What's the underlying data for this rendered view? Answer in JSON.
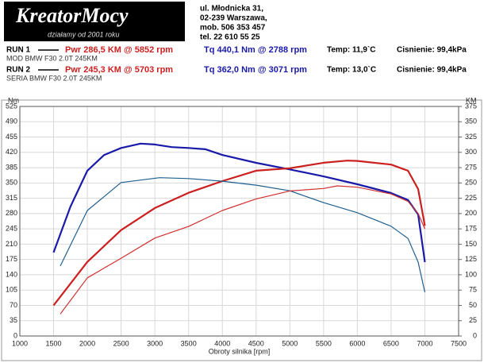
{
  "header": {
    "logo": "KreatorMocy",
    "tagline": "działamy od 2001 roku",
    "address": [
      "ul. Młodnicka 31,",
      "02-239  Warszawa,",
      "mob.  506 353 457",
      "tel.  22 610 55 25"
    ]
  },
  "runs": [
    {
      "label": "RUN 1",
      "power": "Pwr  286,5 KM @ 5852 rpm",
      "torque": "Tq 440,1 Nm @ 2788 rpm",
      "temp": "Temp: 11,9`C",
      "pressure": "Cisnienie: 99,4kPa",
      "car": "MOD BMW F30 2.0T 245KM"
    },
    {
      "label": "RUN 2",
      "power": "Pwr  245,3 KM @ 5703 rpm",
      "torque": "Tq 362,0 Nm @ 3071 rpm",
      "temp": "Temp: 13,0`C",
      "pressure": "Cisnienie: 99,4kPa",
      "car": "SERIA BMW F30 2.0T 245KM"
    }
  ],
  "chart_data": {
    "type": "line",
    "y_label": "Nm",
    "y2_label": "KM",
    "x_label": "Obroty silnika [rpm]",
    "xlim": [
      1000,
      7500
    ],
    "xticks": [
      1000,
      1500,
      2000,
      2500,
      3000,
      3500,
      4000,
      4500,
      5000,
      5500,
      6000,
      6500,
      7000,
      7500
    ],
    "ylim": [
      0,
      525
    ],
    "yticks": [
      0,
      35,
      70,
      105,
      140,
      175,
      210,
      245,
      280,
      315,
      350,
      385,
      420,
      455,
      490,
      525
    ],
    "y2lim": [
      0,
      375
    ],
    "y2ticks": [
      0,
      25,
      50,
      75,
      100,
      125,
      150,
      175,
      200,
      225,
      250,
      275,
      300,
      325,
      350,
      375
    ],
    "grid": true,
    "series": [
      {
        "color": "#1a1aa8",
        "width": 2.2,
        "x": [
          1500,
          1750,
          2000,
          2250,
          2500,
          2788,
          3000,
          3250,
          3500,
          3750,
          4000,
          4500,
          5000,
          5500,
          6000,
          6500,
          6750,
          6900,
          7000
        ],
        "values": [
          191,
          296,
          378,
          414,
          430,
          440,
          438,
          432,
          430,
          427,
          414,
          396,
          381,
          365,
          347,
          327,
          311,
          278,
          169
        ]
      },
      {
        "color": "#cc1f1f",
        "width": 2.2,
        "axis": "y2",
        "x": [
          1500,
          2000,
          2500,
          3000,
          3500,
          4000,
          4500,
          5000,
          5500,
          5852,
          6000,
          6500,
          6750,
          6900,
          7000
        ],
        "values": [
          50,
          121,
          173,
          209,
          234,
          253,
          270,
          274,
          283,
          286.5,
          286,
          280,
          270,
          240,
          180
        ]
      },
      {
        "color": "#1f5f8f",
        "width": 1.2,
        "x": [
          1600,
          2000,
          2500,
          3071,
          3500,
          4000,
          4500,
          5000,
          5500,
          6000,
          6500,
          6750,
          6900,
          7000
        ],
        "values": [
          160,
          287,
          351,
          362,
          360,
          354,
          345,
          332,
          305,
          282,
          251,
          223,
          169,
          100
        ]
      },
      {
        "color": "#d03030",
        "width": 1.2,
        "axis": "y2",
        "x": [
          1600,
          2000,
          2500,
          3000,
          3500,
          4000,
          4500,
          5000,
          5500,
          5703,
          6000,
          6500,
          6750,
          6900,
          7000
        ],
        "values": [
          36,
          95,
          127,
          160,
          179,
          205,
          224,
          237,
          241,
          245.3,
          243,
          232,
          220,
          200,
          175
        ]
      }
    ]
  }
}
